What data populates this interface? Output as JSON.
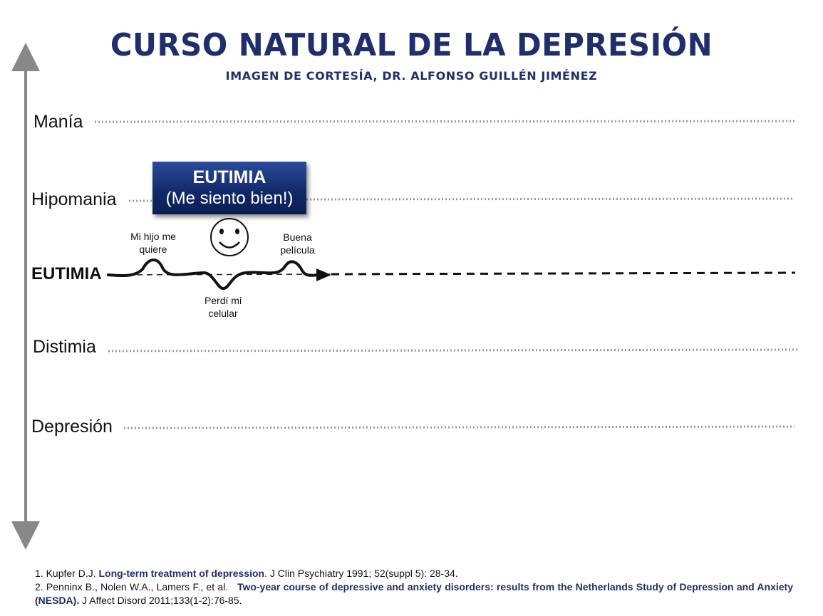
{
  "title": "CURSO NATURAL DE LA DEPRESIÓN",
  "subtitle": "IMAGEN DE CORTESÍA, DR. ALFONSO GUILLÉN JIMÉNEZ",
  "levels": {
    "mania": "Manía",
    "hipomania": "Hipomania",
    "eutimia": "EUTIMIA",
    "distimia": "Distimia",
    "depresion": "Depresión"
  },
  "callout": {
    "title": "EUTIMIA",
    "subtitle": "(Me siento bien!)",
    "icon": "smiley-face-icon"
  },
  "events": {
    "peak1": "Mi hijo me\nquiere",
    "peak2": "Buena\npelícula",
    "dip": "Perdí mi\ncelular"
  },
  "references": [
    {
      "prefix": "1. Kupfer D.J. ",
      "bold": "Long-term treatment of depression",
      "suffix": ".  J Clin Psychiatry 1991; 52(suppl 5): 28-34."
    },
    {
      "prefix": "2. Penninx B., Nolen W.A., Lamers F., et al.   ",
      "bold": "Two-year course of depressive and anxiety disorders: results from the Netherlands Study of Depression and Anxiety (NESDA).",
      "suffix": " J Affect Disord 2011;133(1-2):76-85."
    }
  ],
  "colors": {
    "title": "#1f2f6b",
    "box": "#102869",
    "axis": "#888888",
    "dotted": "#999999"
  }
}
